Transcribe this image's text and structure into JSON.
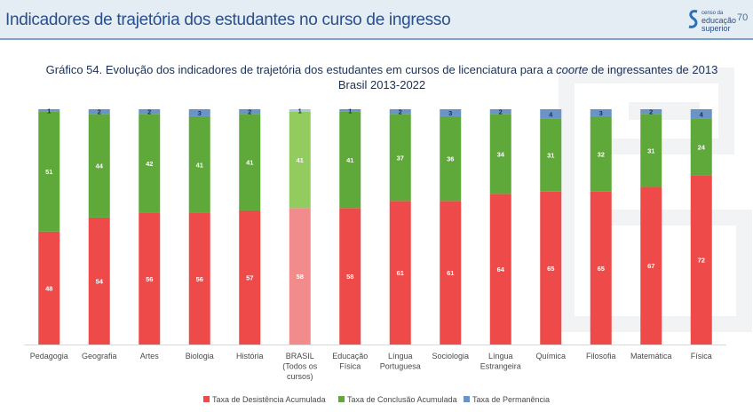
{
  "header": {
    "title": "Indicadores de trajetória dos estudantes no curso de ingresso",
    "page_number": "70",
    "logo_lines": [
      "censo da",
      "educação",
      "superior"
    ],
    "colors": {
      "bar": "#e4ecf4",
      "title": "#2a4f8a"
    }
  },
  "chart_title": {
    "line1_before": "Gráfico 54. Evolução dos indicadores de trajetória dos estudantes em cursos de licenciatura para a ",
    "line1_italic": "coorte",
    "line1_after": " de ingressantes de 2013",
    "line2": "Brasil 2013-2022"
  },
  "chart_data": {
    "type": "bar",
    "stacked": true,
    "categories": [
      [
        "Pedagogia"
      ],
      [
        "Geografia"
      ],
      [
        "Artes"
      ],
      [
        "Biologia"
      ],
      [
        "História"
      ],
      [
        "BRASIL",
        "(Todos os",
        "cursos)"
      ],
      [
        "Educação",
        "Física"
      ],
      [
        "Língua",
        "Portuguesa"
      ],
      [
        "Sociologia"
      ],
      [
        "Língua",
        "Estrangeira"
      ],
      [
        "Química"
      ],
      [
        "Filosofia"
      ],
      [
        "Matemática"
      ],
      [
        "Física"
      ]
    ],
    "highlight_index": 5,
    "series": [
      {
        "name": "Taxa de Desistência Acumulada",
        "color": "#ee4a4a",
        "highlight_color": "#f28b8b",
        "values": [
          48,
          54,
          56,
          56,
          57,
          58,
          58,
          61,
          61,
          64,
          65,
          65,
          67,
          72
        ]
      },
      {
        "name": "Taxa de Conclusão Acumulada",
        "color": "#5fa83a",
        "highlight_color": "#92cc5e",
        "values": [
          51,
          44,
          42,
          41,
          41,
          41,
          41,
          37,
          36,
          34,
          31,
          32,
          31,
          24
        ]
      },
      {
        "name": "Taxa de Permanência",
        "color": "#6a93c8",
        "highlight_color": "#a9c8e8",
        "values": [
          1,
          2,
          2,
          3,
          2,
          1,
          1,
          2,
          3,
          2,
          4,
          3,
          2,
          4
        ]
      }
    ],
    "ylim": [
      0,
      100
    ],
    "legend_position": "bottom",
    "grid": false
  }
}
